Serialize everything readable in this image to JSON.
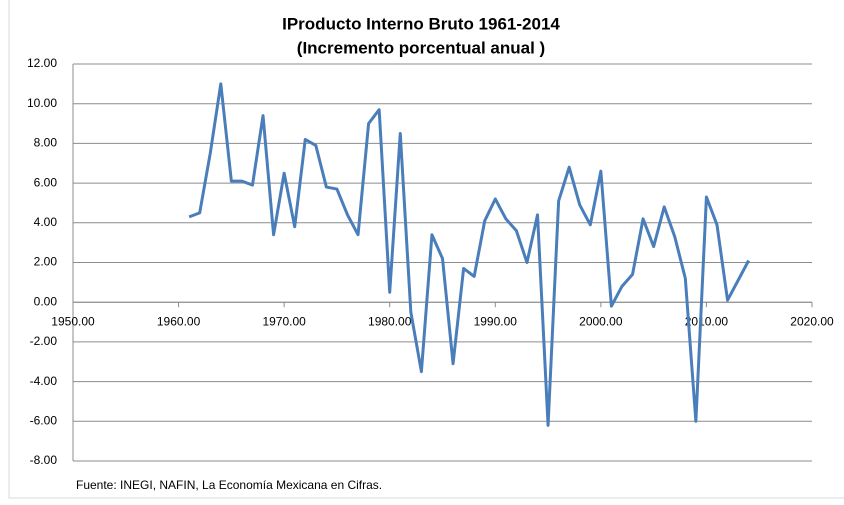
{
  "chart_data": {
    "type": "line",
    "title": "IProducto Interno Bruto  1961-2014",
    "subtitle": "(Incremento porcentual anual )",
    "note": "Fuente: INEGI, NAFIN, La Economía Mexicana en Cifras.",
    "x": [
      1961,
      1962,
      1963,
      1964,
      1965,
      1966,
      1967,
      1968,
      1969,
      1970,
      1971,
      1972,
      1973,
      1974,
      1975,
      1976,
      1977,
      1978,
      1979,
      1980,
      1981,
      1982,
      1983,
      1984,
      1985,
      1986,
      1987,
      1988,
      1989,
      1990,
      1991,
      1992,
      1993,
      1994,
      1995,
      1996,
      1997,
      1998,
      1999,
      2000,
      2001,
      2002,
      2003,
      2004,
      2005,
      2006,
      2007,
      2008,
      2009,
      2010,
      2011,
      2012,
      2013,
      2014
    ],
    "series": [
      {
        "color": "#4a7ebb",
        "values": [
          4.3,
          4.5,
          7.5,
          11.0,
          6.1,
          6.1,
          5.9,
          9.4,
          3.4,
          6.5,
          3.8,
          8.2,
          7.9,
          5.8,
          5.7,
          4.4,
          3.4,
          9.0,
          9.7,
          0.5,
          8.5,
          -0.5,
          -3.5,
          3.4,
          2.2,
          -3.1,
          1.7,
          1.3,
          4.1,
          5.2,
          4.2,
          3.6,
          2.0,
          4.4,
          -6.2,
          5.1,
          6.8,
          4.9,
          3.9,
          6.6,
          -0.2,
          0.8,
          1.4,
          4.2,
          2.8,
          4.8,
          3.3,
          1.2,
          -6.0,
          5.3,
          3.9,
          0.1,
          1.1,
          2.1
        ]
      }
    ],
    "xlim": [
      1950,
      2020
    ],
    "xticks": [
      {
        "value": 1950,
        "label": "1950.00"
      },
      {
        "value": 1960,
        "label": "1960.00"
      },
      {
        "value": 1970,
        "label": "1970.00"
      },
      {
        "value": 1980,
        "label": "1980.00"
      },
      {
        "value": 1990,
        "label": "1990.00"
      },
      {
        "value": 2000,
        "label": "2000.00"
      },
      {
        "value": 2010,
        "label": "2010.00"
      },
      {
        "value": 2020,
        "label": "2020.00"
      }
    ],
    "ylim": [
      -8,
      12
    ],
    "yticks": [
      {
        "value": -8,
        "label": "-8.00"
      },
      {
        "value": -6,
        "label": "-6.00"
      },
      {
        "value": -4,
        "label": "-4.00"
      },
      {
        "value": -2,
        "label": "-2.00"
      },
      {
        "value": 0,
        "label": "0.00"
      },
      {
        "value": 2,
        "label": "2.00"
      },
      {
        "value": 4,
        "label": "4.00"
      },
      {
        "value": 6,
        "label": "6.00"
      },
      {
        "value": 8,
        "label": "8.00"
      },
      {
        "value": 10,
        "label": "10.00"
      },
      {
        "value": 12,
        "label": "12.00"
      }
    ],
    "grid": true
  }
}
